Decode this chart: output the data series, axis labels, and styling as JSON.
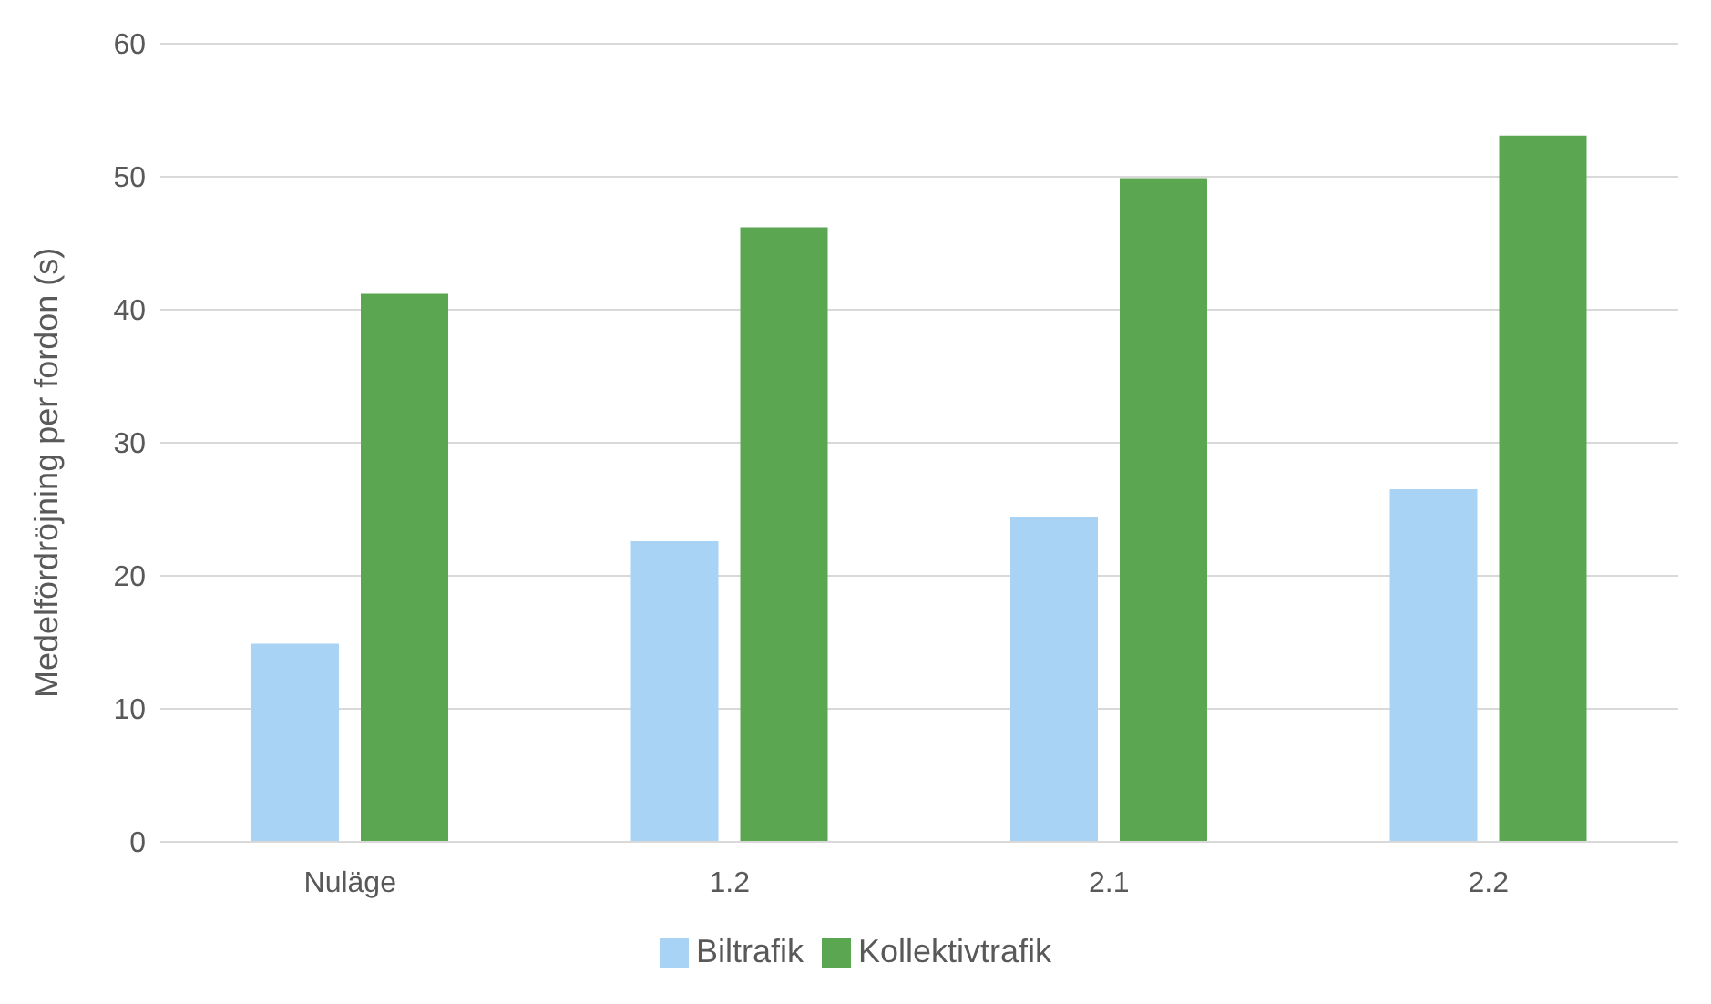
{
  "chart_data": {
    "type": "bar",
    "ylabel": "Medelfördröjning per fordon (s)",
    "categories": [
      "Nuläge",
      "1.2",
      "2.1",
      "2.2"
    ],
    "series": [
      {
        "name": "Biltrafik",
        "color": "#a9d3f5",
        "values": [
          14.9,
          22.6,
          24.4,
          26.5
        ]
      },
      {
        "name": "Kollektivtrafik",
        "color": "#5ba651",
        "values": [
          41.2,
          46.2,
          49.9,
          53.1
        ]
      }
    ],
    "ylim": [
      0,
      60
    ],
    "yticks": [
      0,
      10,
      20,
      30,
      40,
      50,
      60
    ],
    "grid": "y",
    "legend": "bottom"
  }
}
